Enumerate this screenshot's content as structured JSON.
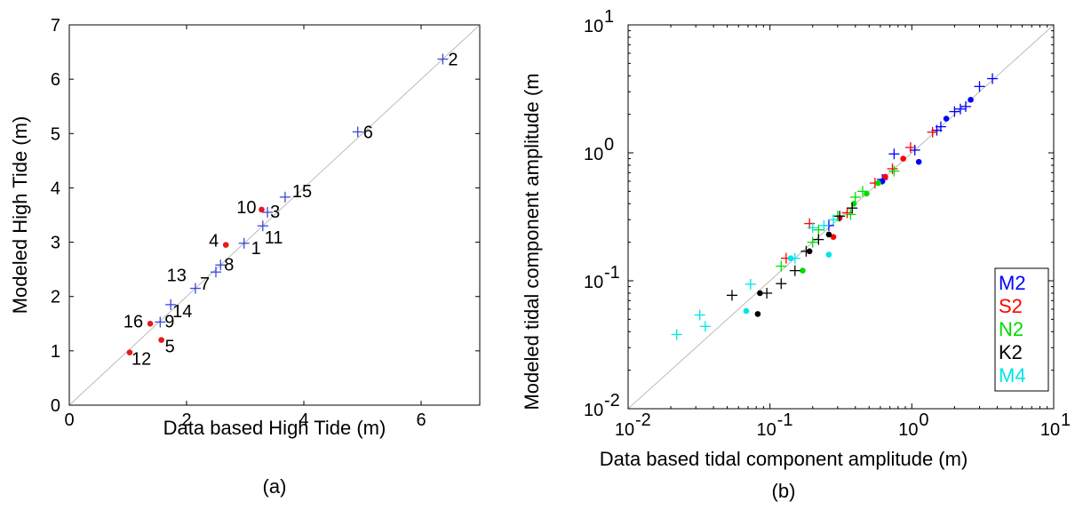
{
  "chart_data": [
    {
      "type": "scatter",
      "caption": "(a)",
      "xlabel": "Data based High Tide (m)",
      "ylabel": "Modeled High Tide (m)",
      "xlim": [
        0,
        7
      ],
      "ylim": [
        0,
        7
      ],
      "x_ticks": [
        "0",
        "2",
        "4",
        "6"
      ],
      "y_ticks": [
        "0",
        "1",
        "2",
        "3",
        "4",
        "5",
        "6",
        "7"
      ],
      "reference_line": "y = x",
      "colors": {
        "plus": "#3b48d9",
        "dot": "#e41a1c",
        "ref": "#bbbbbb"
      },
      "points": [
        {
          "label": "2",
          "x": 6.37,
          "y": 6.37,
          "marker": "plus"
        },
        {
          "label": "6",
          "x": 4.92,
          "y": 5.03,
          "marker": "plus"
        },
        {
          "label": "15",
          "x": 3.68,
          "y": 3.83,
          "marker": "plus"
        },
        {
          "label": "3",
          "x": 3.38,
          "y": 3.55,
          "marker": "plus"
        },
        {
          "label": "10",
          "x": 3.28,
          "y": 3.6,
          "marker": "dot"
        },
        {
          "label": "11",
          "x": 3.3,
          "y": 3.3,
          "marker": "plus"
        },
        {
          "label": "1",
          "x": 2.98,
          "y": 2.98,
          "marker": "plus"
        },
        {
          "label": "4",
          "x": 2.67,
          "y": 2.95,
          "marker": "dot"
        },
        {
          "label": "8",
          "x": 2.58,
          "y": 2.58,
          "marker": "plus"
        },
        {
          "label": "7",
          "x": 2.5,
          "y": 2.45,
          "marker": "plus"
        },
        {
          "label": "13",
          "x": 2.15,
          "y": 2.15,
          "marker": "plus"
        },
        {
          "label": "14",
          "x": 1.73,
          "y": 1.85,
          "marker": "plus"
        },
        {
          "label": "9",
          "x": 1.55,
          "y": 1.53,
          "marker": "plus"
        },
        {
          "label": "16",
          "x": 1.38,
          "y": 1.5,
          "marker": "dot"
        },
        {
          "label": "5",
          "x": 1.57,
          "y": 1.2,
          "marker": "dot"
        },
        {
          "label": "12",
          "x": 1.03,
          "y": 0.97,
          "marker": "dot"
        }
      ]
    },
    {
      "type": "scatter",
      "caption": "(b)",
      "xlabel": "Data based tidal component amplitude (m)",
      "ylabel": "Modeled tidal component amplitude (m",
      "xscale": "log",
      "yscale": "log",
      "xlim": [
        0.01,
        10
      ],
      "ylim": [
        0.01,
        10
      ],
      "tick_base": "10",
      "x_tick_exponents": [
        "-2",
        "-1",
        "0",
        "1"
      ],
      "y_tick_exponents": [
        "-2",
        "-1",
        "0",
        "1"
      ],
      "reference_line": "y = x",
      "legend": {
        "position": "bottom-right",
        "entries": [
          {
            "name": "M2",
            "color": "#0000ff"
          },
          {
            "name": "S2",
            "color": "#ff0000"
          },
          {
            "name": "N2",
            "color": "#00dd00"
          },
          {
            "name": "K2",
            "color": "#000000"
          },
          {
            "name": "M4",
            "color": "#00e5e5"
          }
        ]
      },
      "series": [
        {
          "name": "M2",
          "plus": [
            [
              3.7,
              3.8
            ],
            [
              3.0,
              3.3
            ],
            [
              2.4,
              2.3
            ],
            [
              2.2,
              2.2
            ],
            [
              2.0,
              2.1
            ],
            [
              1.6,
              1.6
            ],
            [
              1.5,
              1.5
            ],
            [
              1.05,
              1.05
            ],
            [
              0.75,
              0.98
            ],
            [
              0.62,
              0.62
            ],
            [
              0.26,
              0.27
            ]
          ],
          "dot": [
            [
              2.6,
              2.6
            ],
            [
              1.75,
              1.85
            ],
            [
              1.12,
              0.85
            ],
            [
              0.62,
              0.6
            ]
          ]
        },
        {
          "name": "S2",
          "plus": [
            [
              1.4,
              1.45
            ],
            [
              0.98,
              1.1
            ],
            [
              0.73,
              0.75
            ],
            [
              0.55,
              0.58
            ],
            [
              0.35,
              0.34
            ],
            [
              0.19,
              0.28
            ],
            [
              0.13,
              0.15
            ]
          ],
          "dot": [
            [
              0.87,
              0.9
            ],
            [
              0.65,
              0.65
            ],
            [
              0.31,
              0.31
            ],
            [
              0.28,
              0.22
            ]
          ]
        },
        {
          "name": "N2",
          "plus": [
            [
              0.75,
              0.72
            ],
            [
              0.45,
              0.5
            ],
            [
              0.4,
              0.45
            ],
            [
              0.37,
              0.33
            ],
            [
              0.3,
              0.32
            ],
            [
              0.22,
              0.25
            ],
            [
              0.2,
              0.2
            ],
            [
              0.12,
              0.13
            ]
          ],
          "dot": [
            [
              0.58,
              0.58
            ],
            [
              0.48,
              0.48
            ],
            [
              0.39,
              0.4
            ],
            [
              0.17,
              0.12
            ]
          ]
        },
        {
          "name": "K2",
          "plus": [
            [
              0.38,
              0.37
            ],
            [
              0.31,
              0.32
            ],
            [
              0.22,
              0.21
            ],
            [
              0.18,
              0.17
            ],
            [
              0.15,
              0.12
            ],
            [
              0.12,
              0.095
            ],
            [
              0.095,
              0.08
            ],
            [
              0.054,
              0.077
            ]
          ],
          "dot": [
            [
              0.26,
              0.23
            ],
            [
              0.19,
              0.17
            ],
            [
              0.085,
              0.08
            ],
            [
              0.082,
              0.055
            ]
          ]
        },
        {
          "name": "M4",
          "plus": [
            [
              0.28,
              0.3
            ],
            [
              0.24,
              0.27
            ],
            [
              0.2,
              0.26
            ],
            [
              0.15,
              0.15
            ],
            [
              0.073,
              0.094
            ],
            [
              0.035,
              0.044
            ],
            [
              0.032,
              0.054
            ],
            [
              0.022,
              0.038
            ]
          ],
          "dot": [
            [
              0.26,
              0.16
            ],
            [
              0.14,
              0.15
            ],
            [
              0.068,
              0.058
            ]
          ]
        }
      ]
    }
  ]
}
